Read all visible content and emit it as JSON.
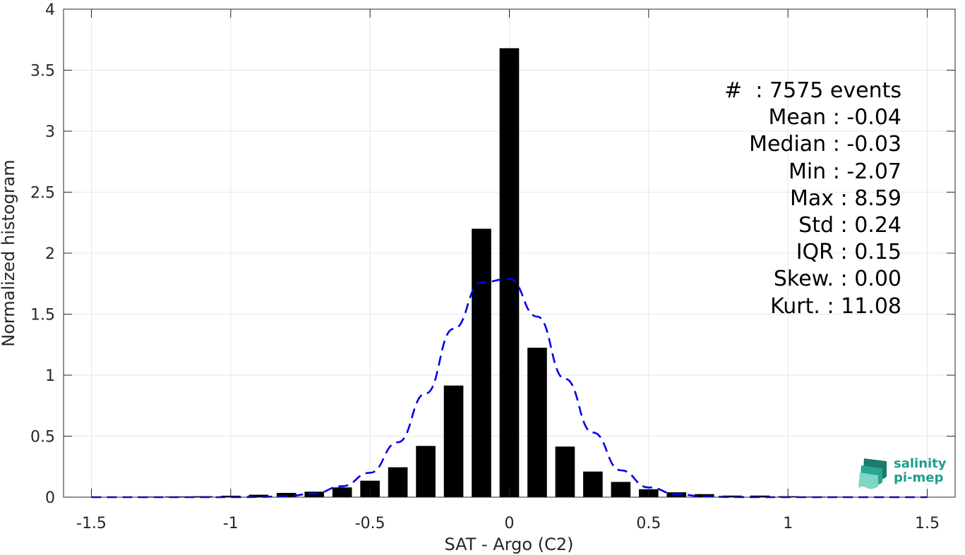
{
  "chart_data": {
    "type": "bar",
    "xlabel": "SAT - Argo (C2)",
    "ylabel": "Normalized histogram",
    "xlim": [
      -1.6,
      1.6
    ],
    "ylim": [
      0,
      4
    ],
    "xticks": [
      -1.5,
      -1,
      -0.5,
      0,
      0.5,
      1,
      1.5
    ],
    "xtick_labels": [
      "-1.5",
      "-1",
      "-0.5",
      "0",
      "0.5",
      "1",
      "1.5"
    ],
    "yticks": [
      0,
      0.5,
      1,
      1.5,
      2,
      2.5,
      3,
      3.5,
      4
    ],
    "ytick_labels": [
      "0",
      "0.5",
      "1",
      "1.5",
      "2",
      "2.5",
      "3",
      "3.5",
      "4"
    ],
    "grid": true,
    "bar_color": "#000000",
    "fit_color": "#0000ee",
    "bars": {
      "x": [
        -1.5,
        -1.4,
        -1.3,
        -1.2,
        -1.1,
        -1.0,
        -0.9,
        -0.8,
        -0.7,
        -0.6,
        -0.5,
        -0.4,
        -0.3,
        -0.2,
        -0.1,
        0.0,
        0.1,
        0.2,
        0.3,
        0.4,
        0.5,
        0.6,
        0.7,
        0.8,
        0.9,
        1.0,
        1.1,
        1.2,
        1.3,
        1.4,
        1.5
      ],
      "values": [
        0.003,
        0.003,
        0.005,
        0.006,
        0.008,
        0.012,
        0.02,
        0.035,
        0.045,
        0.08,
        0.135,
        0.245,
        0.42,
        0.915,
        2.2,
        3.68,
        1.225,
        0.415,
        0.21,
        0.125,
        0.065,
        0.04,
        0.025,
        0.013,
        0.013,
        0.008,
        0.005,
        0.004,
        0.003,
        0.002,
        0.002
      ]
    },
    "fit_curve": {
      "style": "dashed",
      "x": [
        -1.5,
        -1.4,
        -1.3,
        -1.2,
        -1.1,
        -1.0,
        -0.9,
        -0.8,
        -0.7,
        -0.6,
        -0.5,
        -0.4,
        -0.3,
        -0.2,
        -0.1,
        0.0,
        0.1,
        0.2,
        0.3,
        0.4,
        0.5,
        0.6,
        0.7,
        0.8,
        0.9,
        1.0,
        1.1,
        1.2,
        1.3,
        1.4,
        1.5
      ],
      "y": [
        0,
        0,
        0,
        0,
        0,
        0,
        0.002,
        0.008,
        0.03,
        0.09,
        0.2,
        0.45,
        0.85,
        1.38,
        1.76,
        1.79,
        1.48,
        0.97,
        0.53,
        0.22,
        0.08,
        0.025,
        0.006,
        0.001,
        0,
        0,
        0,
        0,
        0,
        0,
        0
      ]
    }
  },
  "stats": [
    {
      "name": "#",
      "sep": "  : ",
      "value": "7575 events"
    },
    {
      "name": "Mean",
      "sep": " : ",
      "value": "-0.04"
    },
    {
      "name": "Median",
      "sep": " : ",
      "value": "-0.03"
    },
    {
      "name": "Min",
      "sep": " : ",
      "value": "-2.07"
    },
    {
      "name": "Max",
      "sep": " : ",
      "value": "8.59"
    },
    {
      "name": "Std",
      "sep": " : ",
      "value": "0.24"
    },
    {
      "name": "IQR",
      "sep": " : ",
      "value": "0.15"
    },
    {
      "name": "Skew.",
      "sep": " : ",
      "value": "0.00"
    },
    {
      "name": "Kurt.",
      "sep": " : ",
      "value": "11.08"
    }
  ],
  "logo": {
    "line1": "salinity",
    "line2": "pi-mep",
    "color": "#1a9e8a"
  }
}
